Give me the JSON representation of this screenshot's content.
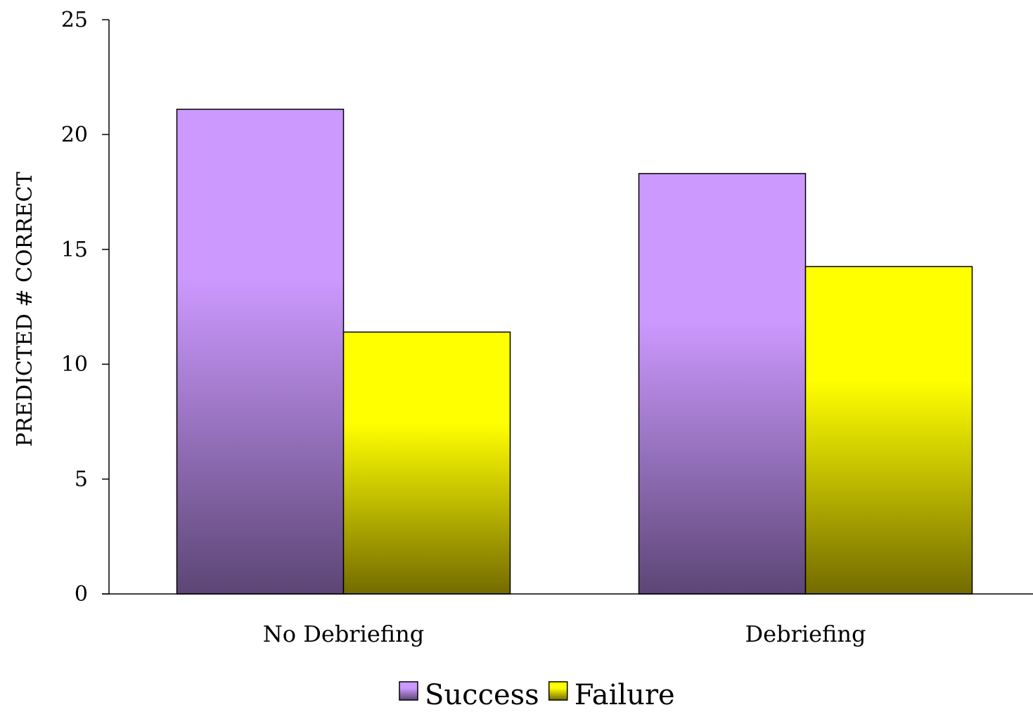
{
  "chart_data": {
    "type": "bar",
    "categories": [
      "No Debriefing",
      "Debriefing"
    ],
    "series": [
      {
        "name": "Success",
        "values": [
          21.1,
          18.3
        ],
        "color_top": "#CC99FF",
        "color_bottom": "#5C4675"
      },
      {
        "name": "Failure",
        "values": [
          11.4,
          14.25
        ],
        "color_top": "#FFFF00",
        "color_bottom": "#736B00"
      }
    ],
    "ylabel": "PREDICTED # CORRECT",
    "ylim": [
      0,
      25
    ],
    "yticks": [
      0,
      5,
      10,
      15,
      20,
      25
    ],
    "ytick_labels": [
      "0",
      "5",
      "10",
      "15",
      "20",
      "25"
    ],
    "grid": false,
    "legend_position": "bottom-center"
  }
}
